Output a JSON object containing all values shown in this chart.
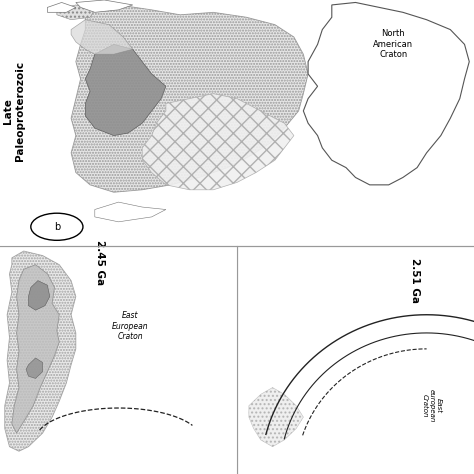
{
  "bg_color": "#ffffff",
  "text_color": "#000000",
  "label_245": "2.45 Ga",
  "label_251": "2.51 Ga",
  "label_east_european_a": "East\nEuropean\nCraton",
  "label_east_european_b": "East\neuropean\nCraton",
  "label_north_american": "North\nAmerican\nCraton",
  "label_late_paleo": "Late\nPaleoproterozoic",
  "panel_b_label": "b",
  "divider_color": "#999999",
  "arrow_color": "#222222",
  "stipple_face": "#e0e0e0",
  "stipple_edge": "#888888",
  "crosshatch_face": "#f0f0f0",
  "crosshatch_edge": "#aaaaaa",
  "dark_gray_face": "#909090",
  "dark_gray_edge": "#555555",
  "medium_gray_face": "#c0c0c0",
  "medium_gray_edge": "#888888",
  "light_gray_face": "#d8d8d8",
  "outline_face": "#ffffff",
  "outline_edge": "#555555"
}
